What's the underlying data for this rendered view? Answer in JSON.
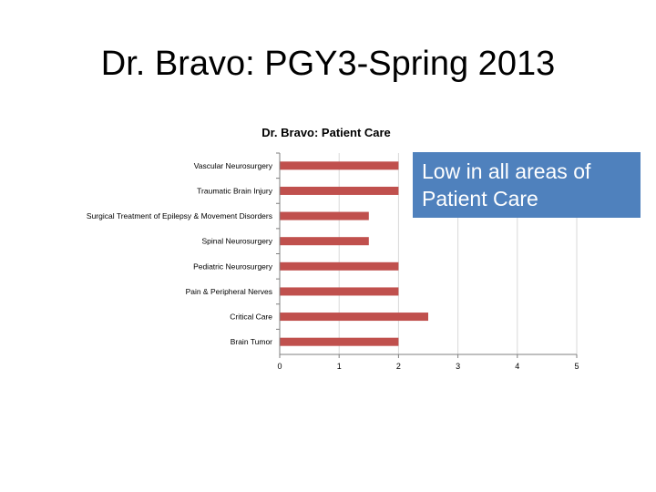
{
  "slide": {
    "title": "Dr. Bravo: PGY3-Spring 2013"
  },
  "callout": {
    "text": "Low in all areas of Patient Care"
  },
  "colors": {
    "bar": "#c0504d",
    "callout": "#4f81bd",
    "axis": "#7f7f7f",
    "grid": "#d9d9d9"
  },
  "chart_data": {
    "type": "bar",
    "orientation": "horizontal",
    "title": "Dr. Bravo: Patient Care",
    "xlabel": "",
    "ylabel": "",
    "categories": [
      "Vascular Neurosurgery",
      "Traumatic Brain Injury",
      "Surgical Treatment of Epilepsy & Movement Disorders",
      "Spinal Neurosurgery",
      "Pediatric Neurosurgery",
      "Pain & Peripheral Nerves",
      "Critical Care",
      "Brain Tumor"
    ],
    "values": [
      2,
      2,
      1.5,
      1.5,
      2,
      2,
      2.5,
      2
    ],
    "xlim": [
      0,
      5
    ],
    "xticks": [
      "0",
      "1",
      "2",
      "3",
      "4",
      "5"
    ],
    "grid": true,
    "legend": "none"
  }
}
